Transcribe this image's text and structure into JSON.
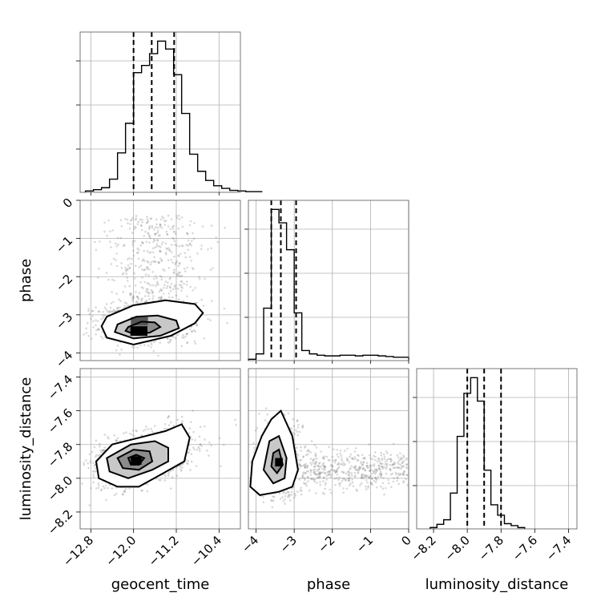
{
  "chart_data": {
    "type": "corner",
    "parameters": [
      {
        "name": "geocent_time",
        "label": "geocent_time",
        "range": [
          -13.0,
          -10.0
        ],
        "ticks": [
          -12.8,
          -12.0,
          -11.2,
          -10.4
        ],
        "tick_labels": [
          "−12.8",
          "−12.0",
          "−11.2",
          "−10.4"
        ],
        "quantiles": [
          -12.0,
          -11.66,
          -11.24
        ],
        "hist": {
          "edges_start": -12.9,
          "bin_width": 0.15,
          "counts": [
            2,
            4,
            7,
            20,
            60,
            105,
            182,
            193,
            211,
            230,
            218,
            179,
            120,
            58,
            32,
            18,
            10,
            6,
            3,
            2,
            1,
            1
          ]
        }
      },
      {
        "name": "phase",
        "label": "phase",
        "range": [
          -4.2,
          0.0
        ],
        "ticks": [
          -4,
          -3,
          -2,
          -1,
          0
        ],
        "tick_labels": [
          "−4",
          "−3",
          "−2",
          "−1",
          "0"
        ],
        "quantiles": [
          -3.6,
          -3.35,
          -2.95
        ],
        "hist": {
          "edges_start": -4.2,
          "bin_width": 0.2,
          "counts": [
            2,
            10,
            78,
            225,
            205,
            165,
            71,
            15,
            10,
            8,
            7,
            7,
            8,
            8,
            7,
            8,
            8,
            7,
            6,
            5,
            5
          ]
        }
      },
      {
        "name": "luminosity_distance",
        "label": "luminosity_distance",
        "range": [
          -8.3,
          -7.35
        ],
        "ticks": [
          -8.2,
          -8.0,
          -7.8,
          -7.6,
          -7.4
        ],
        "tick_labels": [
          "−8.2",
          "−8.0",
          "−7.8",
          "−7.6",
          "−7.4"
        ],
        "quantiles": [
          -8.0,
          -7.9,
          -7.8
        ],
        "hist": {
          "edges_start": -8.22,
          "bin_width": 0.04,
          "counts": [
            2,
            7,
            14,
            55,
            142,
            208,
            232,
            196,
            90,
            37,
            21,
            8,
            5,
            2
          ]
        }
      }
    ],
    "panels_2d": [
      {
        "x": "geocent_time",
        "y": "phase",
        "y_ticks": [
          0,
          -1,
          -2,
          -3,
          -4
        ],
        "y_tick_labels": [
          "0",
          "−1",
          "−2",
          "−3",
          "−4"
        ],
        "y_label": "phase",
        "contours": [
          [
            [
              -12.5,
              -3.05
            ],
            [
              -12.0,
              -2.75
            ],
            [
              -11.4,
              -2.62
            ],
            [
              -10.85,
              -2.72
            ],
            [
              -10.7,
              -2.95
            ],
            [
              -10.85,
              -3.22
            ],
            [
              -11.3,
              -3.55
            ],
            [
              -12.0,
              -3.78
            ],
            [
              -12.5,
              -3.6
            ],
            [
              -12.6,
              -3.3
            ]
          ],
          [
            [
              -12.3,
              -3.25
            ],
            [
              -11.95,
              -3.05
            ],
            [
              -11.55,
              -3.02
            ],
            [
              -11.2,
              -3.15
            ],
            [
              -11.15,
              -3.35
            ],
            [
              -11.5,
              -3.55
            ],
            [
              -12.0,
              -3.62
            ],
            [
              -12.35,
              -3.45
            ]
          ],
          [
            [
              -12.1,
              -3.32
            ],
            [
              -11.85,
              -3.18
            ],
            [
              -11.6,
              -3.2
            ],
            [
              -11.5,
              -3.32
            ],
            [
              -11.7,
              -3.47
            ],
            [
              -12.0,
              -3.5
            ],
            [
              -12.15,
              -3.42
            ]
          ]
        ],
        "density_blocks": [
          {
            "x": -12.06,
            "y": -3.55,
            "w": 0.32,
            "h": 0.25,
            "shade": "#000000"
          },
          {
            "x": -12.05,
            "y": -3.28,
            "w": 0.32,
            "h": 0.22,
            "shade": "#555555"
          }
        ]
      },
      {
        "x": "geocent_time",
        "y": "luminosity_distance",
        "y_ticks": [
          -7.4,
          -7.6,
          -7.8,
          -8.0,
          -8.2
        ],
        "y_tick_labels": [
          "−7.4",
          "−7.6",
          "−7.8",
          "−8.0",
          "−8.2"
        ],
        "y_label": "luminosity_distance",
        "contours": [
          [
            [
              -12.7,
              -7.9
            ],
            [
              -12.4,
              -7.8
            ],
            [
              -11.9,
              -7.76
            ],
            [
              -11.4,
              -7.72
            ],
            [
              -11.1,
              -7.68
            ],
            [
              -10.95,
              -7.76
            ],
            [
              -11.05,
              -7.9
            ],
            [
              -11.5,
              -7.98
            ],
            [
              -11.9,
              -8.05
            ],
            [
              -12.3,
              -8.05
            ],
            [
              -12.65,
              -8.0
            ]
          ],
          [
            [
              -12.5,
              -7.88
            ],
            [
              -12.05,
              -7.8
            ],
            [
              -11.6,
              -7.78
            ],
            [
              -11.35,
              -7.82
            ],
            [
              -11.35,
              -7.9
            ],
            [
              -11.65,
              -7.95
            ],
            [
              -12.1,
              -8.0
            ],
            [
              -12.45,
              -7.96
            ]
          ],
          [
            [
              -12.3,
              -7.88
            ],
            [
              -12.0,
              -7.83
            ],
            [
              -11.7,
              -7.84
            ],
            [
              -11.65,
              -7.9
            ],
            [
              -11.9,
              -7.95
            ],
            [
              -12.2,
              -7.94
            ]
          ],
          [
            [
              -12.1,
              -7.88
            ],
            [
              -11.95,
              -7.86
            ],
            [
              -11.8,
              -7.88
            ],
            [
              -11.9,
              -7.92
            ],
            [
              -12.05,
              -7.92
            ]
          ]
        ],
        "density_blocks": [
          {
            "x": -12.05,
            "y": -7.92,
            "w": 0.2,
            "h": 0.05,
            "shade": "#000000"
          }
        ]
      },
      {
        "x": "phase",
        "y": "luminosity_distance",
        "contours": [
          [
            [
              -3.6,
              -7.65
            ],
            [
              -3.35,
              -7.6
            ],
            [
              -3.05,
              -7.75
            ],
            [
              -2.9,
              -7.95
            ],
            [
              -3.05,
              -8.05
            ],
            [
              -3.4,
              -8.08
            ],
            [
              -3.9,
              -8.1
            ],
            [
              -4.15,
              -8.05
            ],
            [
              -4.1,
              -7.9
            ],
            [
              -3.85,
              -7.75
            ]
          ],
          [
            [
              -3.65,
              -7.78
            ],
            [
              -3.4,
              -7.75
            ],
            [
              -3.2,
              -7.88
            ],
            [
              -3.25,
              -8.0
            ],
            [
              -3.55,
              -8.03
            ],
            [
              -3.8,
              -7.95
            ]
          ],
          [
            [
              -3.55,
              -7.85
            ],
            [
              -3.4,
              -7.83
            ],
            [
              -3.3,
              -7.92
            ],
            [
              -3.45,
              -7.97
            ],
            [
              -3.6,
              -7.93
            ]
          ]
        ],
        "density_blocks": [
          {
            "x": -3.5,
            "y": -7.93,
            "w": 0.2,
            "h": 0.05,
            "shade": "#000000"
          }
        ]
      }
    ]
  }
}
